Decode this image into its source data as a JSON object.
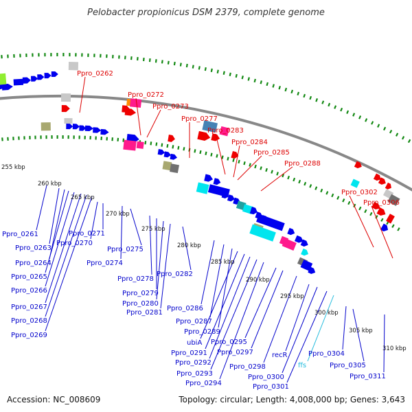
{
  "title": "Pelobacter propionicus DSM 2379, complete genome",
  "footer": {
    "accession": "Accession: NC_008609",
    "summary": "Topology: circular; Length: 4,008,000 bp; Genes: 3,643"
  },
  "colors": {
    "backbone": "#888888",
    "tick": "#118811",
    "label_red": "#dd0000",
    "label_blue": "#0000cc",
    "label_cyan": "#22bbdd",
    "gene_blue": "#0000ee",
    "gene_red": "#ee0000",
    "gene_pink": "#ff1a8c",
    "gene_cyan": "#00e5ee",
    "gene_gray": "#c8c8c8",
    "gene_darkgray": "#707070",
    "gene_olive": "#a8a870",
    "gene_steel": "#4682b4",
    "gene_orange": "#ff8c00",
    "gene_lime": "#90ee30",
    "gene_teal": "#20a0a0"
  },
  "kbp_marks": [
    "255 kbp",
    "260 kbp",
    "265 kbp",
    "270 kbp",
    "275 kbp",
    "280 kbp",
    "285 kbp",
    "290 kbp",
    "295 kbp",
    "300 kbp",
    "305 kbp",
    "310 kbp"
  ],
  "top_labels": [
    "Ppro_0262",
    "Ppro_0272",
    "Ppro_0273",
    "Ppro_0277",
    "Ppro_0283",
    "Ppro_0284",
    "Ppro_0285",
    "Ppro_0288",
    "Ppro_0302",
    "Ppro_0306"
  ],
  "bottom_labels": [
    "Ppro_0261",
    "Ppro_0263",
    "Ppro_0264",
    "Ppro_0265",
    "Ppro_0266",
    "Ppro_0267",
    "Ppro_0268",
    "Ppro_0269",
    "Ppro_0271",
    "Ppro_0270",
    "Ppro_0275",
    "Ppro_0274",
    "Ppro_0278",
    "Ppro_0279",
    "Ppro_0280",
    "Ppro_0281",
    "Ppro_0282",
    "Ppro_0286",
    "Ppro_0287",
    "Ppro_0289",
    "ubiA",
    "Ppro_0291",
    "Ppro_0292",
    "Ppro_0293",
    "Ppro_0294",
    "Ppro_0295",
    "Ppro_0297",
    "Ppro_0298",
    "recR",
    "Ppro_0300",
    "Ppro_0301",
    "ffs",
    "Ppro_0304",
    "Ppro_0305",
    "Ppro_0311"
  ]
}
